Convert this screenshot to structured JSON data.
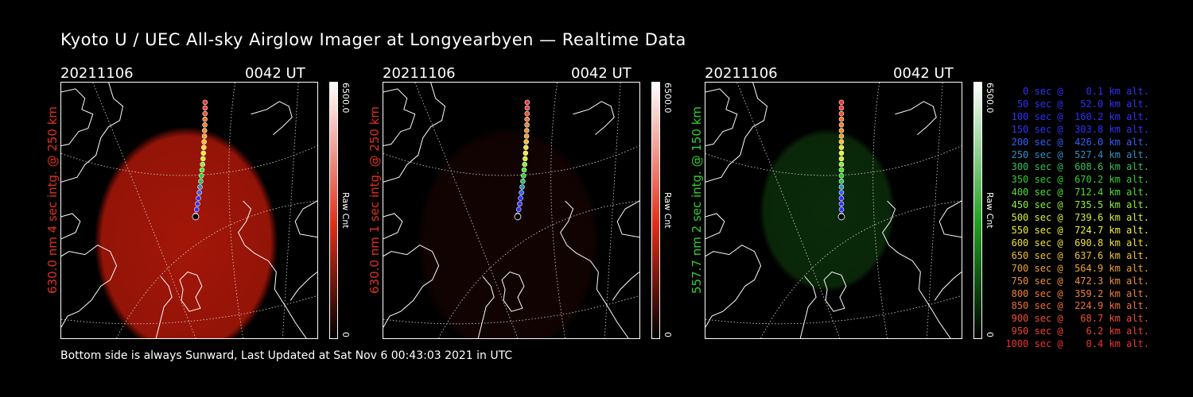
{
  "title": "Kyoto U / UEC All-sky Airglow Imager at Longyearbyen — Realtime Data",
  "panels": [
    {
      "date": "20211106",
      "time": "0042 UT",
      "ylabel": "630.0 nm 4 sec intg. @ 250 km",
      "label_color": "#e03020",
      "cbar_max": "6500.0",
      "cbar_min": "0",
      "cbar_unit": "Raw Cnt",
      "cbar_top_color": "#ffffff",
      "cbar_bottom_color": "#000000",
      "cbar_mid_color": "#e0301a",
      "glow_color": "#c01a0a",
      "glow_level": 0.85
    },
    {
      "date": "20211106",
      "time": "0042 UT",
      "ylabel": "630.0 nm 1 sec intg. @ 250 km",
      "label_color": "#e03020",
      "cbar_max": "6500.0",
      "cbar_min": "0",
      "cbar_unit": "Raw Cnt",
      "cbar_top_color": "#ffffff",
      "cbar_bottom_color": "#000000",
      "cbar_mid_color": "#e0301a",
      "glow_color": "#3a0a08",
      "glow_level": 0.3
    },
    {
      "date": "20211106",
      "time": "0042 UT",
      "ylabel": "557.7 nm 2 sec intg. @ 150 km",
      "label_color": "#30d030",
      "cbar_max": "6500.0",
      "cbar_min": "0",
      "cbar_unit": "Raw Cnt",
      "cbar_top_color": "#ffffff",
      "cbar_bottom_color": "#000000",
      "cbar_mid_color": "#20a020",
      "glow_color": "#124d12",
      "glow_level": 0.55
    }
  ],
  "legend": [
    {
      "text": "   0 sec @    0.1 km alt.",
      "color": "#3030ff"
    },
    {
      "text": "  50 sec @   52.0 km alt.",
      "color": "#3030ff"
    },
    {
      "text": " 100 sec @  160.2 km alt.",
      "color": "#3030ff"
    },
    {
      "text": " 150 sec @  303.8 km alt.",
      "color": "#3030ff"
    },
    {
      "text": " 200 sec @  426.0 km alt.",
      "color": "#3060ff"
    },
    {
      "text": " 250 sec @  527.4 km alt.",
      "color": "#3090c0"
    },
    {
      "text": " 300 sec @  608.6 km alt.",
      "color": "#30c060"
    },
    {
      "text": " 350 sec @  670.2 km alt.",
      "color": "#30d030"
    },
    {
      "text": " 400 sec @  712.4 km alt.",
      "color": "#50e030"
    },
    {
      "text": " 450 sec @  735.5 km alt.",
      "color": "#90f030"
    },
    {
      "text": " 500 sec @  739.6 km alt.",
      "color": "#d0f030"
    },
    {
      "text": " 550 sec @  724.7 km alt.",
      "color": "#f0f030"
    },
    {
      "text": " 600 sec @  690.8 km alt.",
      "color": "#f0e030"
    },
    {
      "text": " 650 sec @  637.6 km alt.",
      "color": "#f0c030"
    },
    {
      "text": " 700 sec @  564.9 km alt.",
      "color": "#f0a030"
    },
    {
      "text": " 750 sec @  472.3 km alt.",
      "color": "#f09030"
    },
    {
      "text": " 800 sec @  359.2 km alt.",
      "color": "#f08030"
    },
    {
      "text": " 850 sec @  224.9 km alt.",
      "color": "#f07030"
    },
    {
      "text": " 900 sec @   68.7 km alt.",
      "color": "#f05030"
    },
    {
      "text": " 950 sec @    6.2 km alt.",
      "color": "#f04030"
    },
    {
      "text": "1000 sec @    0.4 km alt.",
      "color": "#f03030"
    }
  ],
  "footer": "Bottom side is always Sunward, Last Updated at Sat Nov  6 00:43:03 2021 in UTC"
}
